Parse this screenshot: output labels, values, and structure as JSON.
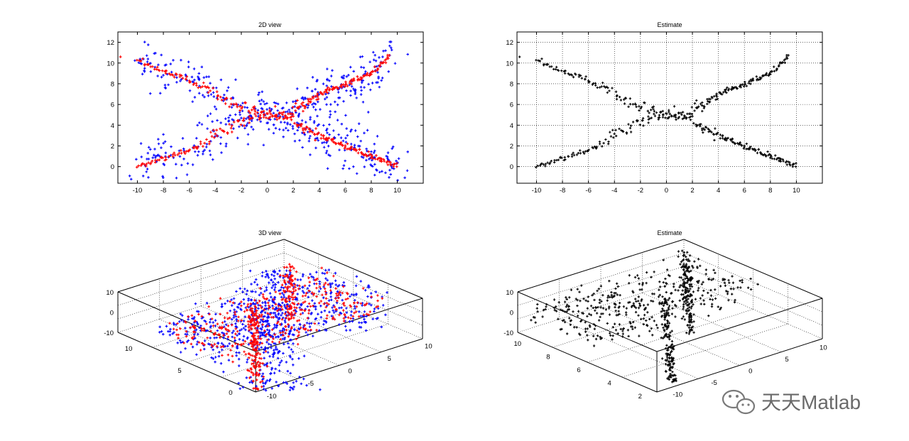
{
  "chart_data": [
    {
      "type": "scatter",
      "title": "2D view",
      "xlim": [
        -11.5,
        12
      ],
      "ylim": [
        -1.6,
        13
      ],
      "xticks": [
        "-10",
        "-8",
        "-6",
        "-4",
        "-2",
        "0",
        "2",
        "4",
        "6",
        "8",
        "10"
      ],
      "yticks": [
        "0",
        "2",
        "4",
        "6",
        "8",
        "10",
        "12"
      ],
      "grid": false,
      "series": [
        {
          "color": "#0000ff",
          "marker": "+",
          "style": "noisy points around four branches"
        },
        {
          "color": "#ff0000",
          "marker": "+",
          "style": "dense points along four branches"
        }
      ],
      "branches": [
        {
          "x": [
            -10,
            -6,
            -2,
            0,
            2
          ],
          "y": [
            10.2,
            8.3,
            5.6,
            5.0,
            4.9
          ]
        },
        {
          "x": [
            -10,
            -6,
            -2,
            0,
            2
          ],
          "y": [
            0.0,
            1.6,
            4.4,
            5.0,
            4.9
          ]
        },
        {
          "x": [
            2,
            4,
            6,
            8,
            9.5
          ],
          "y": [
            5.6,
            7.0,
            8.0,
            9.0,
            10.7
          ]
        },
        {
          "x": [
            2.2,
            4,
            6,
            8,
            10
          ],
          "y": [
            4.0,
            3.0,
            2.0,
            1.0,
            0.1
          ]
        }
      ]
    },
    {
      "type": "scatter",
      "title": "Estimate",
      "xlim": [
        -11.5,
        12
      ],
      "ylim": [
        -1.6,
        13
      ],
      "xticks": [
        "-10",
        "-8",
        "-6",
        "-4",
        "-2",
        "0",
        "2",
        "4",
        "6",
        "8",
        "10"
      ],
      "yticks": [
        "0",
        "2",
        "4",
        "6",
        "8",
        "10",
        "12"
      ],
      "grid": true,
      "series": [
        {
          "color": "#000000",
          "marker": "+",
          "style": "points along four branches"
        }
      ]
    },
    {
      "type": "scatter",
      "title": "3D view",
      "zticks": [
        "10",
        "0",
        "-10"
      ],
      "left_axis_ticks": [
        "10",
        "5",
        "0"
      ],
      "right_axis_ticks": [
        "-10",
        "-5",
        "0",
        "5",
        "10"
      ],
      "grid": true,
      "series": [
        {
          "color": "#0000ff",
          "marker": "+"
        },
        {
          "color": "#ff0000",
          "marker": "+"
        }
      ]
    },
    {
      "type": "scatter",
      "title": "Estimate",
      "zticks": [
        "10",
        "0",
        "-10"
      ],
      "left_axis_ticks": [
        "10",
        "8",
        "6",
        "4",
        "2"
      ],
      "right_axis_ticks": [
        "-10",
        "-5",
        "0",
        "5",
        "10"
      ],
      "grid": true,
      "series": [
        {
          "color": "#000000",
          "marker": "+"
        }
      ]
    }
  ],
  "watermark": {
    "text": "天天Matlab",
    "icon": "wechat-icon"
  }
}
